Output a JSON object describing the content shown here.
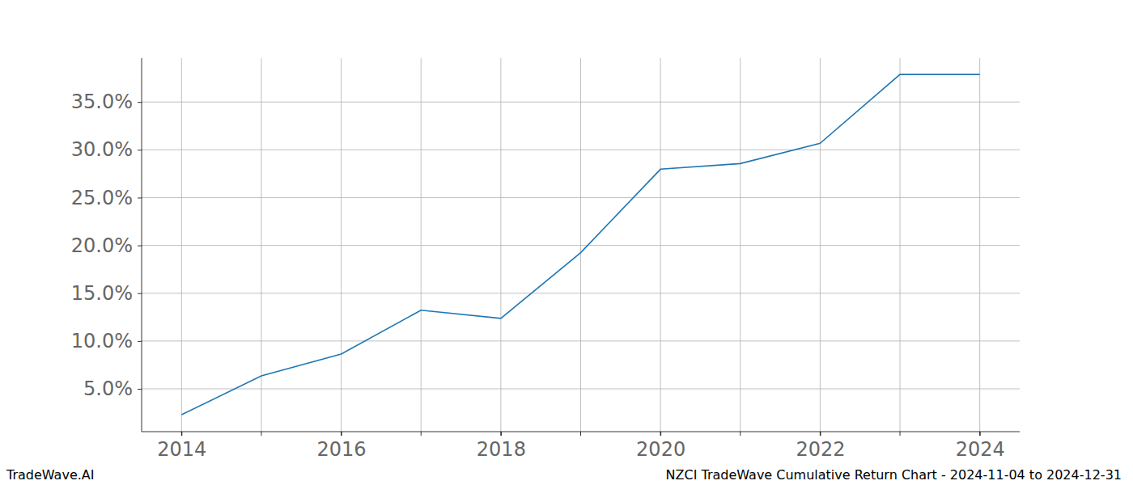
{
  "chart_data": {
    "type": "line",
    "title": "NZCI TradeWave Cumulative Return Chart - 2024-11-04 to 2024-12-31",
    "watermark": "TradeWave.AI",
    "x": [
      2014,
      2015,
      2016,
      2017,
      2018,
      2019,
      2020,
      2021,
      2022,
      2023,
      2024
    ],
    "values": [
      2.29,
      6.36,
      8.64,
      13.22,
      12.37,
      19.24,
      27.97,
      28.56,
      30.68,
      37.88,
      37.88
    ],
    "color": "#1f77b4",
    "xlim": [
      2013.5,
      2024.5
    ],
    "xticks": [
      2014,
      2016,
      2018,
      2020,
      2022,
      2024
    ],
    "ylim": [
      0.52,
      39.58
    ],
    "yticks": [
      {
        "value": 5,
        "label": "5.0%"
      },
      {
        "value": 10,
        "label": "10.0%"
      },
      {
        "value": 15,
        "label": "15.0%"
      },
      {
        "value": 20,
        "label": "20.0%"
      },
      {
        "value": 25,
        "label": "25.0%"
      },
      {
        "value": 30,
        "label": "30.0%"
      },
      {
        "value": 35,
        "label": "35.0%"
      }
    ],
    "grid": true
  }
}
